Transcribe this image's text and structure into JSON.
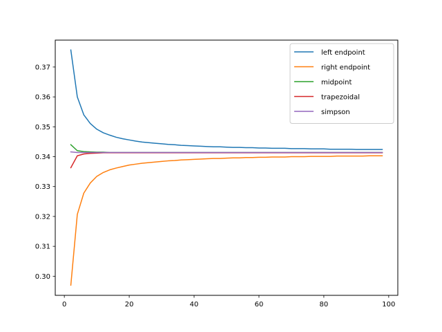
{
  "chart_data": {
    "type": "line",
    "title": "",
    "xlabel": "",
    "ylabel": "",
    "xlim": [
      -2.8,
      102.8
    ],
    "ylim": [
      0.2936,
      0.379
    ],
    "xticks": [
      0,
      20,
      40,
      60,
      80,
      100
    ],
    "xtick_labels": [
      "0",
      "20",
      "40",
      "60",
      "80",
      "100"
    ],
    "yticks": [
      0.3,
      0.31,
      0.32,
      0.33,
      0.34,
      0.35,
      0.36,
      0.37
    ],
    "ytick_labels": [
      "0.30",
      "0.31",
      "0.32",
      "0.33",
      "0.34",
      "0.35",
      "0.36",
      "0.37"
    ],
    "grid": false,
    "legend_position": "top-right",
    "x": [
      2,
      4,
      6,
      8,
      10,
      12,
      14,
      16,
      18,
      20,
      22,
      24,
      26,
      28,
      30,
      32,
      34,
      36,
      38,
      40,
      42,
      44,
      46,
      48,
      50,
      52,
      54,
      56,
      58,
      60,
      62,
      64,
      66,
      68,
      70,
      72,
      74,
      76,
      78,
      80,
      82,
      84,
      86,
      88,
      90,
      92,
      94,
      96,
      98
    ],
    "series": [
      {
        "name": "left endpoint",
        "color": "#1f77b4",
        "values": [
          0.3757,
          0.36,
          0.354,
          0.3511,
          0.3492,
          0.348,
          0.3472,
          0.3465,
          0.346,
          0.3456,
          0.3452,
          0.3449,
          0.3447,
          0.3445,
          0.3443,
          0.3441,
          0.344,
          0.3438,
          0.3437,
          0.3436,
          0.3435,
          0.3434,
          0.3433,
          0.3433,
          0.3432,
          0.3431,
          0.3431,
          0.343,
          0.343,
          0.3429,
          0.3429,
          0.3428,
          0.3428,
          0.3428,
          0.3427,
          0.3427,
          0.3427,
          0.3426,
          0.3426,
          0.3426,
          0.3425,
          0.3425,
          0.3425,
          0.3425,
          0.3424,
          0.3424,
          0.3424,
          0.3424,
          0.3424
        ]
      },
      {
        "name": "right endpoint",
        "color": "#ff7f0e",
        "values": [
          0.297,
          0.3207,
          0.3278,
          0.3312,
          0.3334,
          0.3347,
          0.3356,
          0.3362,
          0.3367,
          0.3372,
          0.3375,
          0.3378,
          0.338,
          0.3382,
          0.3384,
          0.3386,
          0.3387,
          0.3389,
          0.339,
          0.3391,
          0.3392,
          0.3393,
          0.3394,
          0.3394,
          0.3395,
          0.3396,
          0.3396,
          0.3397,
          0.3397,
          0.3398,
          0.3398,
          0.3399,
          0.3399,
          0.3399,
          0.34,
          0.34,
          0.34,
          0.3401,
          0.3401,
          0.3401,
          0.3401,
          0.3402,
          0.3402,
          0.3402,
          0.3402,
          0.3402,
          0.3403,
          0.3403,
          0.3403
        ]
      },
      {
        "name": "midpoint",
        "color": "#2ca02c",
        "values": [
          0.344,
          0.342,
          0.3417,
          0.3416,
          0.3415,
          0.3415,
          0.3414,
          0.3414,
          0.3414,
          0.3414,
          0.3414,
          0.3414,
          0.3414,
          0.3414,
          0.3414,
          0.3414,
          0.3414,
          0.3414,
          0.3414,
          0.3414,
          0.3414,
          0.3414,
          0.3414,
          0.3414,
          0.3414,
          0.3414,
          0.3414,
          0.3414,
          0.3414,
          0.3414,
          0.3414,
          0.3414,
          0.3414,
          0.3414,
          0.3414,
          0.3414,
          0.3414,
          0.3414,
          0.3414,
          0.3414,
          0.3414,
          0.3414,
          0.3414,
          0.3414,
          0.3414,
          0.3414,
          0.3414,
          0.3414,
          0.3414
        ]
      },
      {
        "name": "trapezoidal",
        "color": "#d62728",
        "values": [
          0.3363,
          0.3403,
          0.3409,
          0.3411,
          0.3412,
          0.3413,
          0.3413,
          0.3413,
          0.3413,
          0.3413,
          0.3413,
          0.3413,
          0.3413,
          0.3413,
          0.3413,
          0.3413,
          0.3413,
          0.3413,
          0.3413,
          0.3413,
          0.3413,
          0.3413,
          0.3413,
          0.3413,
          0.3413,
          0.3413,
          0.3413,
          0.3413,
          0.3413,
          0.3413,
          0.3413,
          0.3413,
          0.3413,
          0.3413,
          0.3413,
          0.3413,
          0.3413,
          0.3413,
          0.3413,
          0.3413,
          0.3413,
          0.3413,
          0.3413,
          0.3413,
          0.3413,
          0.3413,
          0.3413,
          0.3413,
          0.3413
        ]
      },
      {
        "name": "simpson",
        "color": "#9467bd",
        "values": [
          0.3416,
          0.3414,
          0.3414,
          0.3414,
          0.3414,
          0.3414,
          0.3414,
          0.3414,
          0.3414,
          0.3414,
          0.3414,
          0.3414,
          0.3414,
          0.3414,
          0.3414,
          0.3414,
          0.3414,
          0.3414,
          0.3414,
          0.3414,
          0.3414,
          0.3414,
          0.3414,
          0.3414,
          0.3414,
          0.3414,
          0.3414,
          0.3414,
          0.3414,
          0.3414,
          0.3414,
          0.3414,
          0.3414,
          0.3414,
          0.3414,
          0.3414,
          0.3414,
          0.3414,
          0.3414,
          0.3414,
          0.3414,
          0.3414,
          0.3414,
          0.3414,
          0.3414,
          0.3414,
          0.3414,
          0.3414,
          0.3414
        ]
      }
    ]
  }
}
